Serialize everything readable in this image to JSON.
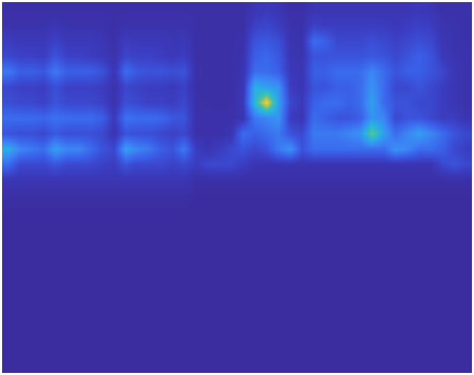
{
  "chart_data": {
    "type": "heatmap",
    "tick_labels": false,
    "zlim": [
      0,
      1
    ],
    "cells": [
      [
        0.02,
        0.02,
        0.02,
        0.02,
        0.02,
        0.02,
        0.02,
        0.02,
        0.02,
        0.02,
        0.02,
        0.02,
        0.02,
        0.02,
        0.02,
        0.02,
        0.02,
        0.02,
        0.02,
        0.02,
        0.02,
        0.06,
        0.08,
        0.06,
        0.02,
        0.02,
        0.06,
        0.06,
        0.06,
        0.06,
        0.06,
        0.06,
        0.06,
        0.06,
        0.06,
        0.08,
        0.06,
        0.03,
        0.03,
        0.03
      ],
      [
        0.04,
        0.04,
        0.04,
        0.04,
        0.06,
        0.04,
        0.04,
        0.04,
        0.04,
        0.02,
        0.04,
        0.04,
        0.04,
        0.04,
        0.04,
        0.04,
        0.02,
        0.02,
        0.02,
        0.02,
        0.02,
        0.12,
        0.14,
        0.1,
        0.04,
        0.03,
        0.12,
        0.1,
        0.1,
        0.1,
        0.1,
        0.1,
        0.1,
        0.08,
        0.1,
        0.12,
        0.1,
        0.05,
        0.04,
        0.03
      ],
      [
        0.1,
        0.08,
        0.08,
        0.08,
        0.12,
        0.08,
        0.08,
        0.08,
        0.06,
        0.03,
        0.1,
        0.08,
        0.08,
        0.08,
        0.06,
        0.08,
        0.02,
        0.02,
        0.02,
        0.02,
        0.03,
        0.2,
        0.22,
        0.18,
        0.05,
        0.04,
        0.3,
        0.25,
        0.15,
        0.15,
        0.15,
        0.18,
        0.15,
        0.12,
        0.15,
        0.18,
        0.15,
        0.06,
        0.04,
        0.03
      ],
      [
        0.15,
        0.12,
        0.12,
        0.1,
        0.2,
        0.12,
        0.12,
        0.1,
        0.08,
        0.04,
        0.14,
        0.12,
        0.12,
        0.1,
        0.08,
        0.1,
        0.02,
        0.02,
        0.02,
        0.02,
        0.04,
        0.25,
        0.28,
        0.22,
        0.06,
        0.05,
        0.2,
        0.2,
        0.2,
        0.2,
        0.2,
        0.22,
        0.2,
        0.15,
        0.2,
        0.25,
        0.2,
        0.08,
        0.05,
        0.04
      ],
      [
        0.35,
        0.25,
        0.25,
        0.22,
        0.35,
        0.25,
        0.25,
        0.25,
        0.2,
        0.06,
        0.3,
        0.22,
        0.2,
        0.2,
        0.18,
        0.2,
        0.03,
        0.02,
        0.02,
        0.02,
        0.05,
        0.3,
        0.3,
        0.25,
        0.08,
        0.06,
        0.25,
        0.25,
        0.3,
        0.3,
        0.3,
        0.4,
        0.3,
        0.2,
        0.25,
        0.25,
        0.2,
        0.15,
        0.06,
        0.04
      ],
      [
        0.15,
        0.12,
        0.12,
        0.1,
        0.18,
        0.12,
        0.12,
        0.12,
        0.1,
        0.04,
        0.14,
        0.12,
        0.1,
        0.1,
        0.08,
        0.12,
        0.02,
        0.02,
        0.02,
        0.02,
        0.06,
        0.55,
        0.5,
        0.45,
        0.1,
        0.06,
        0.2,
        0.2,
        0.25,
        0.25,
        0.3,
        0.45,
        0.3,
        0.15,
        0.15,
        0.2,
        0.15,
        0.1,
        0.06,
        0.04
      ],
      [
        0.18,
        0.15,
        0.15,
        0.12,
        0.2,
        0.15,
        0.15,
        0.15,
        0.12,
        0.04,
        0.18,
        0.15,
        0.12,
        0.12,
        0.1,
        0.15,
        0.03,
        0.02,
        0.02,
        0.02,
        0.08,
        0.6,
        0.95,
        0.5,
        0.15,
        0.08,
        0.25,
        0.3,
        0.3,
        0.25,
        0.3,
        0.5,
        0.3,
        0.2,
        0.2,
        0.15,
        0.15,
        0.1,
        0.06,
        0.04
      ],
      [
        0.3,
        0.3,
        0.3,
        0.28,
        0.32,
        0.3,
        0.3,
        0.3,
        0.25,
        0.08,
        0.32,
        0.3,
        0.3,
        0.28,
        0.22,
        0.2,
        0.03,
        0.03,
        0.03,
        0.03,
        0.05,
        0.35,
        0.4,
        0.45,
        0.1,
        0.05,
        0.3,
        0.25,
        0.2,
        0.2,
        0.25,
        0.45,
        0.4,
        0.15,
        0.2,
        0.2,
        0.15,
        0.1,
        0.1,
        0.05
      ],
      [
        0.2,
        0.18,
        0.18,
        0.15,
        0.22,
        0.18,
        0.18,
        0.18,
        0.15,
        0.05,
        0.2,
        0.18,
        0.18,
        0.15,
        0.12,
        0.15,
        0.03,
        0.03,
        0.03,
        0.05,
        0.3,
        0.25,
        0.3,
        0.35,
        0.2,
        0.15,
        0.35,
        0.35,
        0.35,
        0.4,
        0.45,
        0.75,
        0.5,
        0.3,
        0.4,
        0.5,
        0.4,
        0.3,
        0.2,
        0.15
      ],
      [
        0.55,
        0.4,
        0.35,
        0.3,
        0.5,
        0.4,
        0.4,
        0.3,
        0.2,
        0.15,
        0.5,
        0.4,
        0.35,
        0.25,
        0.2,
        0.35,
        0.1,
        0.05,
        0.1,
        0.15,
        0.2,
        0.15,
        0.2,
        0.35,
        0.45,
        0.2,
        0.3,
        0.3,
        0.3,
        0.3,
        0.3,
        0.3,
        0.3,
        0.45,
        0.4,
        0.3,
        0.3,
        0.25,
        0.15,
        0.1
      ],
      [
        0.3,
        0.15,
        0.15,
        0.15,
        0.2,
        0.15,
        0.15,
        0.15,
        0.12,
        0.1,
        0.2,
        0.15,
        0.15,
        0.15,
        0.12,
        0.15,
        0.1,
        0.15,
        0.15,
        0.15,
        0.1,
        0.05,
        0.05,
        0.05,
        0.05,
        0.05,
        0.05,
        0.05,
        0.05,
        0.05,
        0.05,
        0.05,
        0.05,
        0.05,
        0.05,
        0.05,
        0.05,
        0.15,
        0.2,
        0.15
      ],
      [
        0.06,
        0.06,
        0.06,
        0.06,
        0.06,
        0.06,
        0.06,
        0.06,
        0.06,
        0.06,
        0.06,
        0.06,
        0.06,
        0.06,
        0.06,
        0.06,
        0.02,
        0.02,
        0.02,
        0.02,
        0.02,
        0.02,
        0.02,
        0.02,
        0.02,
        0.02,
        0.02,
        0.02,
        0.02,
        0.02,
        0.02,
        0.02,
        0.02,
        0.02,
        0.02,
        0.02,
        0.02,
        0.02,
        0.02,
        0.02
      ],
      [
        0.02,
        0.02,
        0.02,
        0.02,
        0.02,
        0.02,
        0.02,
        0.02,
        0.02,
        0.02,
        0.02,
        0.02,
        0.02,
        0.02,
        0.02,
        0.02,
        0,
        0,
        0,
        0,
        0,
        0,
        0,
        0,
        0,
        0,
        0,
        0,
        0,
        0,
        0,
        0,
        0,
        0,
        0,
        0,
        0,
        0,
        0,
        0
      ],
      [
        0,
        0,
        0,
        0,
        0,
        0,
        0,
        0,
        0,
        0,
        0,
        0,
        0,
        0,
        0,
        0,
        0,
        0,
        0,
        0,
        0,
        0,
        0,
        0,
        0,
        0,
        0,
        0,
        0,
        0,
        0,
        0,
        0,
        0,
        0,
        0,
        0,
        0,
        0,
        0
      ],
      [
        0,
        0,
        0,
        0,
        0,
        0,
        0,
        0,
        0,
        0,
        0,
        0,
        0,
        0,
        0,
        0,
        0,
        0,
        0,
        0,
        0,
        0,
        0,
        0,
        0,
        0,
        0,
        0,
        0,
        0,
        0,
        0,
        0,
        0,
        0,
        0,
        0,
        0,
        0,
        0
      ],
      [
        0,
        0,
        0,
        0,
        0,
        0,
        0,
        0,
        0,
        0,
        0,
        0,
        0,
        0,
        0,
        0,
        0,
        0,
        0,
        0,
        0,
        0,
        0,
        0,
        0,
        0,
        0,
        0,
        0,
        0,
        0,
        0,
        0,
        0,
        0,
        0,
        0,
        0,
        0,
        0
      ],
      [
        0,
        0,
        0,
        0,
        0,
        0,
        0,
        0,
        0,
        0,
        0,
        0,
        0,
        0,
        0,
        0,
        0,
        0,
        0,
        0,
        0,
        0,
        0,
        0,
        0,
        0,
        0,
        0,
        0,
        0,
        0,
        0,
        0,
        0,
        0,
        0,
        0,
        0,
        0,
        0
      ],
      [
        0,
        0,
        0,
        0,
        0,
        0,
        0,
        0,
        0,
        0,
        0,
        0,
        0,
        0,
        0,
        0,
        0,
        0,
        0,
        0,
        0,
        0,
        0,
        0,
        0,
        0,
        0,
        0,
        0,
        0,
        0,
        0,
        0,
        0,
        0,
        0,
        0,
        0,
        0,
        0
      ],
      [
        0,
        0,
        0,
        0,
        0,
        0,
        0,
        0,
        0,
        0,
        0,
        0,
        0,
        0,
        0,
        0,
        0,
        0,
        0,
        0,
        0,
        0,
        0,
        0,
        0,
        0,
        0,
        0,
        0,
        0,
        0,
        0,
        0,
        0,
        0,
        0,
        0,
        0,
        0,
        0
      ],
      [
        0,
        0,
        0,
        0,
        0,
        0,
        0,
        0,
        0,
        0,
        0,
        0,
        0,
        0,
        0,
        0,
        0,
        0,
        0,
        0,
        0,
        0,
        0,
        0,
        0,
        0,
        0,
        0,
        0,
        0,
        0,
        0,
        0,
        0,
        0,
        0,
        0,
        0,
        0,
        0
      ],
      [
        0,
        0,
        0,
        0,
        0,
        0,
        0,
        0,
        0,
        0,
        0,
        0,
        0,
        0,
        0,
        0,
        0,
        0,
        0,
        0,
        0,
        0,
        0,
        0,
        0,
        0,
        0,
        0,
        0,
        0,
        0,
        0,
        0,
        0,
        0,
        0,
        0,
        0,
        0,
        0
      ],
      [
        0,
        0,
        0,
        0,
        0,
        0,
        0,
        0,
        0,
        0,
        0,
        0,
        0,
        0,
        0,
        0,
        0,
        0,
        0,
        0,
        0,
        0,
        0,
        0,
        0,
        0,
        0,
        0,
        0,
        0,
        0,
        0,
        0,
        0,
        0,
        0,
        0,
        0,
        0,
        0
      ],
      [
        0,
        0,
        0,
        0,
        0,
        0,
        0,
        0,
        0,
        0,
        0,
        0,
        0,
        0,
        0,
        0,
        0,
        0,
        0,
        0,
        0,
        0,
        0,
        0,
        0,
        0,
        0,
        0,
        0,
        0,
        0,
        0,
        0,
        0,
        0,
        0,
        0,
        0,
        0,
        0
      ],
      [
        0,
        0,
        0,
        0,
        0,
        0,
        0,
        0,
        0,
        0,
        0,
        0,
        0,
        0,
        0,
        0,
        0,
        0,
        0,
        0,
        0,
        0,
        0,
        0,
        0,
        0,
        0,
        0,
        0,
        0,
        0,
        0,
        0,
        0,
        0,
        0,
        0,
        0,
        0,
        0
      ]
    ]
  }
}
